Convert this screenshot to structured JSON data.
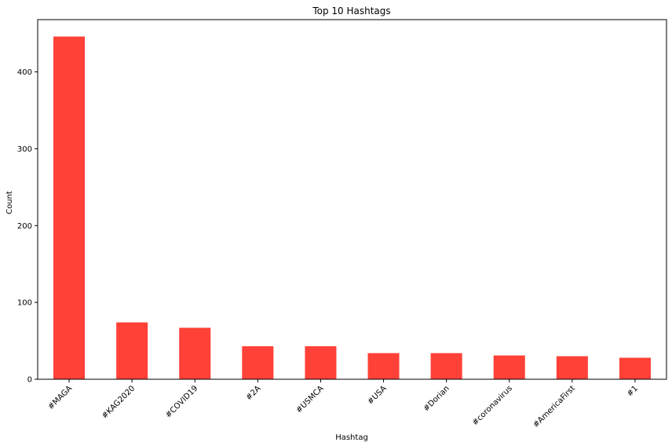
{
  "chart_data": {
    "type": "bar",
    "title": "Top 10 Hashtags",
    "xlabel": "Hashtag",
    "ylabel": "Count",
    "categories": [
      "#MAGA",
      "#KAG2020",
      "#COVID19",
      "#2A",
      "#USMCA",
      "#USA",
      "#Dorian",
      "#coronavirus",
      "#AmericaFirst",
      "#1"
    ],
    "values": [
      446,
      74,
      67,
      43,
      43,
      34,
      34,
      31,
      30,
      28
    ],
    "ylim": [
      0,
      468
    ],
    "yticks": [
      0,
      100,
      200,
      300,
      400
    ],
    "grid": false,
    "legend": "none",
    "bar_color": "#ff4138"
  }
}
